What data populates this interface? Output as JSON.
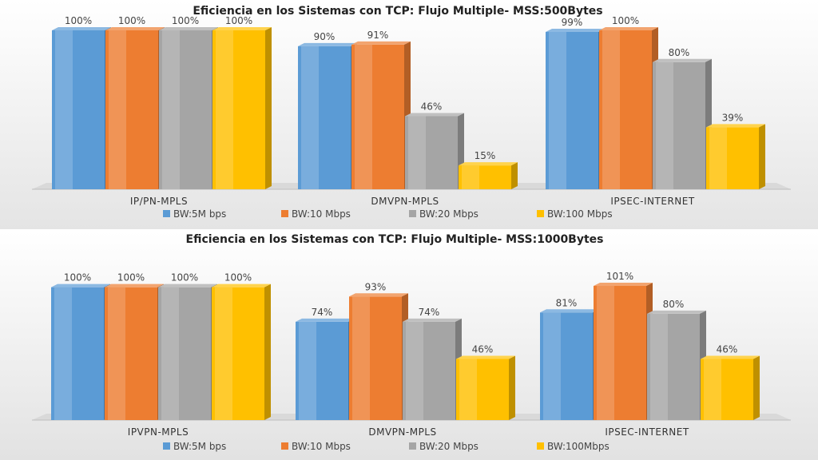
{
  "chart_data": [
    {
      "type": "bar",
      "title": "Eficiencia en los Sistemas  con TCP: Flujo Multiple- MSS:500Bytes",
      "categories": [
        "IP/PN-MPLS",
        "DMVPN-MPLS",
        "IPSEC-INTERNET"
      ],
      "legend_position": "bottom",
      "ylim": [
        0,
        100
      ],
      "series": [
        {
          "name": "BW:5M bps",
          "color": "#5b9bd5",
          "values": [
            100,
            90,
            99
          ],
          "labels": [
            "100%",
            "90%",
            "99%"
          ]
        },
        {
          "name": "BW:10 Mbps",
          "color": "#ed7d31",
          "values": [
            100,
            91,
            100
          ],
          "labels": [
            "100%",
            "91%",
            "100%"
          ]
        },
        {
          "name": "BW:20 Mbps",
          "color": "#a5a5a5",
          "values": [
            100,
            46,
            80
          ],
          "labels": [
            "100%",
            "46%",
            "80%"
          ]
        },
        {
          "name": "BW:100 Mbps",
          "color": "#ffc000",
          "values": [
            100,
            15,
            39
          ],
          "labels": [
            "100%",
            "15%",
            "39%"
          ]
        }
      ]
    },
    {
      "type": "bar",
      "title": "Eficiencia en los Sistemas  con TCP: Flujo Multiple- MSS:1000Bytes",
      "categories": [
        "IPVPN-MPLS",
        "DMVPN-MPLS",
        "IPSEC-INTERNET"
      ],
      "legend_position": "bottom",
      "ylim": [
        0,
        101
      ],
      "series": [
        {
          "name": "BW:5M bps",
          "color": "#5b9bd5",
          "values": [
            100,
            74,
            81
          ],
          "labels": [
            "100%",
            "74%",
            "81%"
          ]
        },
        {
          "name": "BW:10 Mbps",
          "color": "#ed7d31",
          "values": [
            100,
            93,
            101
          ],
          "labels": [
            "100%",
            "93%",
            "101%"
          ]
        },
        {
          "name": "BW:20 Mbps",
          "color": "#a5a5a5",
          "values": [
            100,
            74,
            80
          ],
          "labels": [
            "100%",
            "74%",
            "80%"
          ]
        },
        {
          "name": "BW:100Mbps",
          "color": "#ffc000",
          "values": [
            100,
            46,
            46
          ],
          "labels": [
            "100%",
            "46%",
            "46%"
          ]
        }
      ]
    }
  ]
}
